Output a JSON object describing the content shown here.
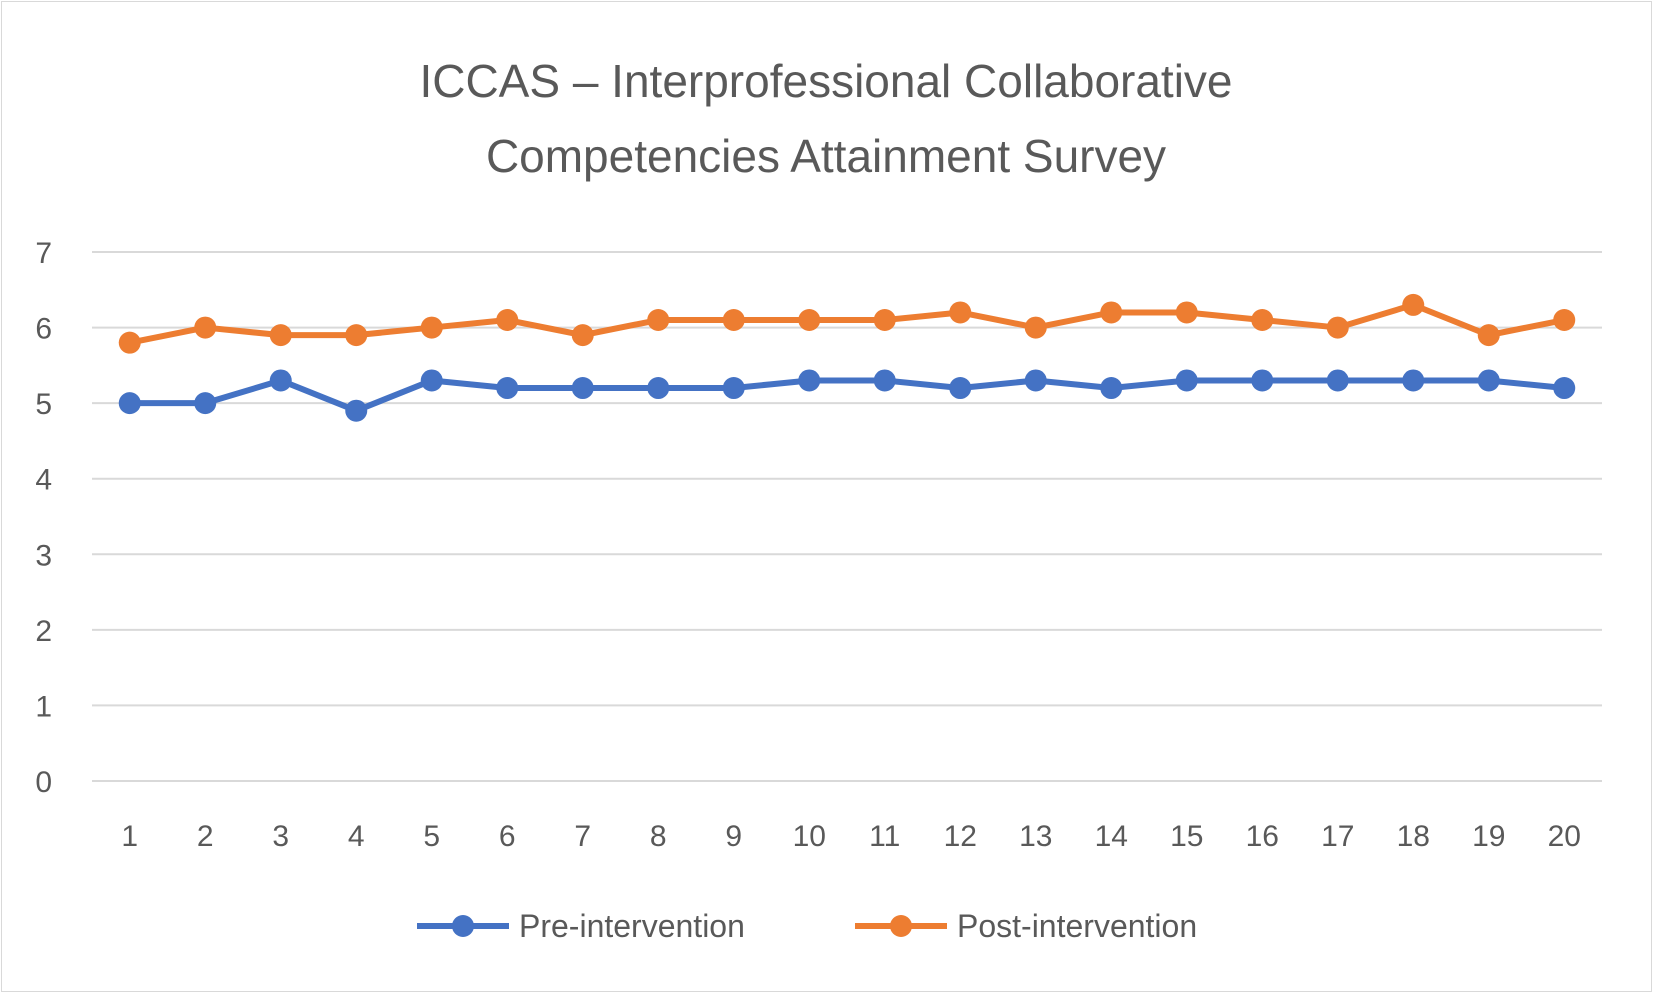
{
  "chart_data": {
    "type": "line",
    "title_lines": [
      "ICCAS – Interprofessional Collaborative",
      "Competencies Attainment Survey"
    ],
    "xlabel": "",
    "ylabel": "",
    "x": [
      "1",
      "2",
      "3",
      "4",
      "5",
      "6",
      "7",
      "8",
      "9",
      "10",
      "11",
      "12",
      "13",
      "14",
      "15",
      "16",
      "17",
      "18",
      "19",
      "20"
    ],
    "yticks": [
      "0",
      "1",
      "2",
      "3",
      "4",
      "5",
      "6",
      "7"
    ],
    "ylim": [
      0,
      7
    ],
    "grid": true,
    "legend_position": "bottom",
    "series": [
      {
        "name": "Pre-intervention",
        "color": "#4472c4",
        "values": [
          5.0,
          5.0,
          5.3,
          4.9,
          5.3,
          5.2,
          5.2,
          5.2,
          5.2,
          5.3,
          5.3,
          5.2,
          5.3,
          5.2,
          5.3,
          5.3,
          5.3,
          5.3,
          5.3,
          5.2
        ]
      },
      {
        "name": "Post-intervention",
        "color": "#ed7d31",
        "values": [
          5.8,
          6.0,
          5.9,
          5.9,
          6.0,
          6.1,
          5.9,
          6.1,
          6.1,
          6.1,
          6.1,
          6.2,
          6.0,
          6.2,
          6.2,
          6.1,
          6.0,
          6.3,
          5.9,
          6.1
        ]
      }
    ]
  }
}
